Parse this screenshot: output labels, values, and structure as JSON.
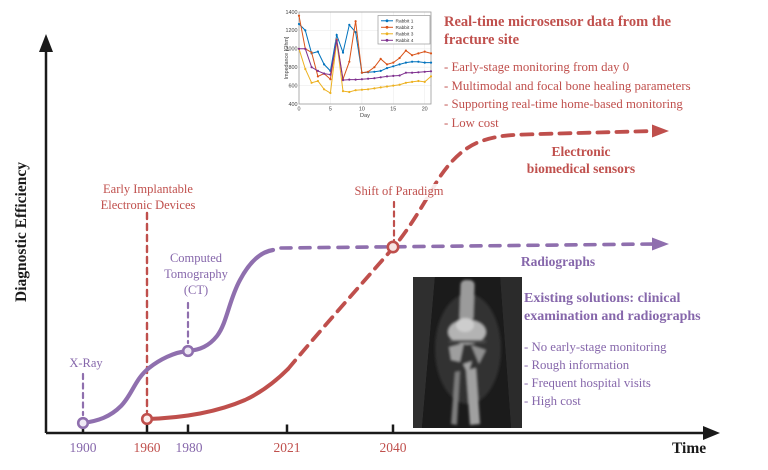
{
  "figure": {
    "y_axis_label": "Diagnostic Efficiency",
    "x_axis_label": "Time",
    "colors": {
      "red": "#bf4f4c",
      "red_text": "#c0504d",
      "purple": "#8f6fae",
      "purple_text": "#8667ab",
      "axis": "#1a1a1a"
    },
    "ticks": [
      {
        "label": "1900",
        "color": "purple"
      },
      {
        "label": "1960",
        "color": "red"
      },
      {
        "label": "1980",
        "color": "purple"
      },
      {
        "label": "2021",
        "color": "red"
      },
      {
        "label": "2040",
        "color": "red"
      }
    ],
    "labels": {
      "x_ray": "X-Ray",
      "ct_line1": "Computed",
      "ct_line2": "Tomography",
      "ct_line3": "(CT)",
      "early_line1": "Early Implantable",
      "early_line2": "Electronic Devices",
      "shift": "Shift of Paradigm",
      "sensors_line1": "Electronic",
      "sensors_line2": "biomedical sensors",
      "radiographs": "Radiographs"
    },
    "red_block": {
      "title": "Real-time microsensor data from the fracture site",
      "bullets": [
        "- Early-stage monitoring from day 0",
        "- Multimodal and focal bone healing parameters",
        "- Supporting real-time home-based monitoring",
        "- Low cost"
      ]
    },
    "purple_block": {
      "title": "Existing solutions: clinical examination and radiographs",
      "bullets": [
        "- No early-stage monitoring",
        "- Rough information",
        "- Frequent hospital visits",
        "- High cost"
      ]
    }
  },
  "chart_data": [
    {
      "type": "line",
      "title": "",
      "xlabel": "Day",
      "ylabel": "Impedance [Ohm]",
      "xlim": [
        0,
        21
      ],
      "ylim": [
        400,
        1400
      ],
      "xticks": [
        "0",
        "5",
        "10",
        "15",
        "20"
      ],
      "xtick_values": [
        0,
        5,
        10,
        15,
        20
      ],
      "yticks": [
        "400",
        "600",
        "800",
        "1000",
        "1200",
        "1400"
      ],
      "ytick_values": [
        400,
        600,
        800,
        1000,
        1200,
        1400
      ],
      "grid": true,
      "legend_position": "upper right",
      "x": [
        0,
        1,
        2,
        3,
        4,
        5,
        6,
        7,
        8,
        9,
        10,
        11,
        12,
        13,
        14,
        15,
        16,
        17,
        18,
        19,
        20,
        21
      ],
      "series": [
        {
          "name": "Rabbit 1",
          "color": "#0072BD",
          "values": [
            1270,
            1200,
            950,
            970,
            830,
            760,
            1150,
            960,
            1260,
            1180,
            740,
            745,
            750,
            760,
            790,
            810,
            830,
            850,
            860,
            860,
            850,
            850
          ]
        },
        {
          "name": "Rabbit 2",
          "color": "#D95319",
          "values": [
            1360,
            1000,
            960,
            700,
            730,
            670,
            1100,
            670,
            860,
            1300,
            740,
            750,
            800,
            890,
            830,
            850,
            900,
            980,
            930,
            950,
            970,
            950
          ]
        },
        {
          "name": "Rabbit 3",
          "color": "#EDB120",
          "values": [
            1000,
            780,
            630,
            650,
            560,
            520,
            1080,
            540,
            530,
            550,
            555,
            560,
            570,
            580,
            590,
            600,
            610,
            630,
            640,
            650,
            640,
            700
          ]
        },
        {
          "name": "Rabbit 4",
          "color": "#7E2F8E",
          "values": [
            1000,
            1000,
            800,
            760,
            730,
            720,
            1090,
            660,
            665,
            665,
            670,
            675,
            680,
            690,
            700,
            705,
            710,
            740,
            740,
            745,
            750,
            755
          ]
        }
      ]
    },
    {
      "type": "conceptual-line",
      "xlabel": "Time",
      "ylabel": "Diagnostic Efficiency",
      "x_ticks": [
        "1900",
        "1960",
        "1980",
        "2021",
        "2040"
      ],
      "curves": [
        {
          "name": "Radiographs",
          "color": "#8f6fae",
          "milestones": [
            {
              "x": "1900",
              "label": "X-Ray"
            },
            {
              "x": "1980",
              "label": "Computed Tomography (CT)"
            }
          ],
          "shape": "double S-curve rising from 1900, step at CT 1980, plateau reached before 2021, dashed flat projection to future arrow"
        },
        {
          "name": "Electronic biomedical sensors",
          "color": "#bf4f4c",
          "milestones": [
            {
              "x": "1960",
              "label": "Early Implantable Electronic Devices"
            },
            {
              "x": "2040",
              "label": "Shift of Paradigm"
            }
          ],
          "shape": "slow solid rise 1960-2021, dashed steep projected rise crossing Radiographs curve at 2040, then plateau above it to future arrow"
        }
      ]
    }
  ]
}
